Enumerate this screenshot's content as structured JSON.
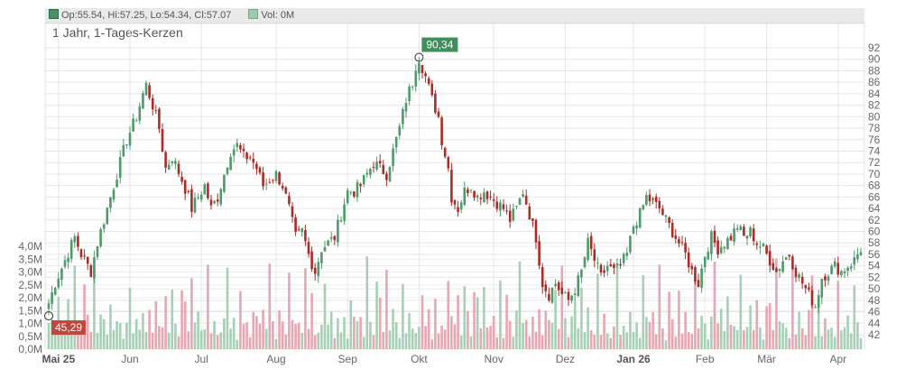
{
  "header": {
    "ohlc": "Op:55.54, Hi:57.25, Lo:54.34, Cl:57.07",
    "vol": "Vol: 0M",
    "title": "1 Jahr, 1-Tages-Kerzen"
  },
  "colors": {
    "up": "#4e9a6a",
    "down": "#ab2b26",
    "up_vol": "#a7cfb5",
    "down_vol": "#e7a7b2",
    "grid": "#e6e6e6"
  },
  "chart_data": {
    "type": "candlestick",
    "title": "1 Jahr, 1-Tages-Kerzen",
    "price_axis": {
      "ylim": [
        40,
        93
      ],
      "ticks": [
        42,
        44,
        46,
        48,
        50,
        52,
        54,
        56,
        58,
        60,
        62,
        64,
        66,
        68,
        70,
        72,
        74,
        76,
        78,
        80,
        82,
        84,
        86,
        88,
        90,
        92
      ]
    },
    "volume_axis": {
      "ylim": [
        0,
        4.0
      ],
      "ticks": [
        "0,0M",
        "0,5M",
        "1,0M",
        "1,5M",
        "2,0M",
        "2,5M",
        "3,0M",
        "3,5M",
        "4,0M"
      ]
    },
    "x_labels": [
      {
        "label": "Mai 25",
        "bold": true
      },
      {
        "label": "Jun",
        "bold": false
      },
      {
        "label": "Jul",
        "bold": false
      },
      {
        "label": "Aug",
        "bold": false
      },
      {
        "label": "Sep",
        "bold": false
      },
      {
        "label": "Okt",
        "bold": false
      },
      {
        "label": "Nov",
        "bold": false
      },
      {
        "label": "Dez",
        "bold": false
      },
      {
        "label": "Jan 26",
        "bold": true
      },
      {
        "label": "Feb",
        "bold": false
      },
      {
        "label": "Mär",
        "bold": false
      },
      {
        "label": "Apr",
        "bold": false
      }
    ],
    "annotations": {
      "max": "90,34",
      "min": "45,29"
    },
    "anchors": [
      [
        0,
        47.5
      ],
      [
        2,
        51
      ],
      [
        5,
        55
      ],
      [
        8,
        59
      ],
      [
        10,
        56
      ],
      [
        12,
        54
      ],
      [
        13,
        53
      ],
      [
        15,
        58
      ],
      [
        18,
        64
      ],
      [
        21,
        70
      ],
      [
        24,
        76
      ],
      [
        27,
        80
      ],
      [
        29,
        84
      ],
      [
        30,
        85.5
      ],
      [
        32,
        82
      ],
      [
        34,
        78
      ],
      [
        36,
        71
      ],
      [
        38,
        73
      ],
      [
        41,
        69
      ],
      [
        43,
        66
      ],
      [
        44,
        64
      ],
      [
        46,
        66
      ],
      [
        48,
        68
      ],
      [
        50,
        64
      ],
      [
        52,
        66
      ],
      [
        54,
        70
      ],
      [
        56,
        74
      ],
      [
        58,
        75
      ],
      [
        60,
        73
      ],
      [
        62,
        73
      ],
      [
        64,
        71
      ],
      [
        66,
        68
      ],
      [
        68,
        69
      ],
      [
        70,
        70
      ],
      [
        72,
        68
      ],
      [
        74,
        64
      ],
      [
        76,
        59
      ],
      [
        78,
        60
      ],
      [
        80,
        56
      ],
      [
        82,
        53
      ],
      [
        84,
        57
      ],
      [
        86,
        58
      ],
      [
        88,
        59
      ],
      [
        90,
        63
      ],
      [
        92,
        67
      ],
      [
        94,
        67
      ],
      [
        96,
        68
      ],
      [
        98,
        70
      ],
      [
        100,
        72
      ],
      [
        102,
        71
      ],
      [
        104,
        70
      ],
      [
        106,
        74
      ],
      [
        108,
        78
      ],
      [
        110,
        83
      ],
      [
        112,
        86
      ],
      [
        113,
        89
      ],
      [
        114,
        90.3
      ],
      [
        116,
        87
      ],
      [
        118,
        83
      ],
      [
        120,
        80
      ],
      [
        121,
        76
      ],
      [
        123,
        71
      ],
      [
        124,
        66
      ],
      [
        126,
        64
      ],
      [
        128,
        67
      ],
      [
        130,
        68
      ],
      [
        132,
        66
      ],
      [
        134,
        67
      ],
      [
        136,
        66
      ],
      [
        138,
        65
      ],
      [
        140,
        64
      ],
      [
        142,
        62
      ],
      [
        144,
        64
      ],
      [
        146,
        67
      ],
      [
        148,
        63
      ],
      [
        150,
        59
      ],
      [
        151,
        55
      ],
      [
        152,
        51
      ],
      [
        154,
        49
      ],
      [
        156,
        51
      ],
      [
        158,
        49
      ],
      [
        160,
        48
      ],
      [
        162,
        50
      ],
      [
        164,
        53
      ],
      [
        166,
        58
      ],
      [
        168,
        55
      ],
      [
        170,
        52
      ],
      [
        172,
        54
      ],
      [
        174,
        53
      ],
      [
        176,
        54
      ],
      [
        178,
        56
      ],
      [
        180,
        61
      ],
      [
        182,
        63
      ],
      [
        184,
        66
      ],
      [
        186,
        65
      ],
      [
        188,
        64
      ],
      [
        190,
        62
      ],
      [
        192,
        60
      ],
      [
        194,
        58
      ],
      [
        196,
        56
      ],
      [
        198,
        53
      ],
      [
        200,
        51
      ],
      [
        202,
        56
      ],
      [
        204,
        59
      ],
      [
        206,
        57
      ],
      [
        208,
        58
      ],
      [
        210,
        59
      ],
      [
        212,
        61
      ],
      [
        214,
        59
      ],
      [
        216,
        60
      ],
      [
        218,
        58
      ],
      [
        220,
        57
      ],
      [
        222,
        55
      ],
      [
        224,
        53
      ],
      [
        226,
        55
      ],
      [
        228,
        56
      ],
      [
        230,
        53
      ],
      [
        232,
        51
      ],
      [
        234,
        49
      ],
      [
        236,
        47
      ],
      [
        238,
        52
      ],
      [
        240,
        53
      ],
      [
        242,
        54
      ],
      [
        244,
        53
      ],
      [
        246,
        54
      ],
      [
        248,
        55
      ],
      [
        250,
        57
      ]
    ],
    "volume_pattern": [
      0.8,
      1.3,
      0.6,
      2.4,
      1.0,
      0.9,
      1.9,
      0.7,
      2.9,
      1.2,
      0.5,
      2.1,
      1.6,
      0.8,
      3.1,
      0.9,
      1.4,
      1.1,
      0.6,
      2.6,
      0.7,
      1.8,
      0.9,
      0.5,
      1.2,
      3.4,
      0.8,
      1.5,
      0.6,
      2.0
    ]
  }
}
